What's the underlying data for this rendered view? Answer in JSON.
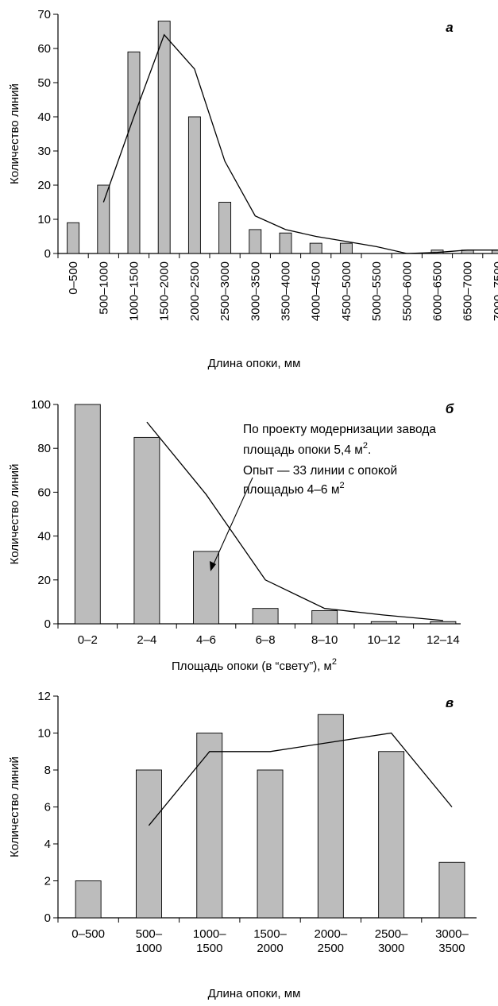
{
  "chart_data": [
    {
      "type": "bar",
      "panel_label": "а",
      "xlabel": "Длина опоки, мм",
      "ylabel": "Количество линий",
      "ylim": [
        0,
        70
      ],
      "yticks": [
        0,
        10,
        20,
        30,
        40,
        50,
        60,
        70
      ],
      "categories": [
        "0–500",
        "500–1000",
        "1000–1500",
        "1500–2000",
        "2000–2500",
        "2500–3000",
        "3000–3500",
        "3500–4000",
        "4000–4500",
        "4500–5000",
        "5000–5500",
        "5500–6000",
        "6000–6500",
        "6500–7000",
        "7000–7500"
      ],
      "values": [
        9,
        20,
        59,
        68,
        40,
        15,
        7,
        6,
        3,
        3,
        0,
        0,
        1,
        1,
        1
      ],
      "trend": [
        null,
        15,
        40,
        64,
        54,
        27,
        11,
        7,
        5,
        3.5,
        2,
        0,
        0.3,
        1,
        1
      ],
      "grid": false
    },
    {
      "type": "bar",
      "panel_label": "б",
      "xlabel": "Площадь опоки (в “свету”), м",
      "xlabel_sup": "2",
      "ylabel": "Количество линий",
      "ylim": [
        0,
        100
      ],
      "yticks": [
        0,
        20,
        40,
        60,
        80,
        100
      ],
      "categories": [
        "0–2",
        "2–4",
        "4–6",
        "6–8",
        "8–10",
        "10–12",
        "12–14"
      ],
      "values": [
        100,
        85,
        33,
        7,
        6,
        1,
        1
      ],
      "trend": [
        null,
        92,
        59,
        20,
        7,
        4,
        1.5
      ],
      "annotation": {
        "line1": "По проекту модернизации завода",
        "line2": "площадь опоки 5,4 м",
        "line2_sup": "2",
        "line2_end": ".",
        "line3": "Опыт — 33 линии с опокой",
        "line4": "площадью 4–6 м",
        "line4_sup": "2"
      },
      "grid": false
    },
    {
      "type": "bar",
      "panel_label": "в",
      "xlabel": "Длина опоки, мм",
      "ylabel": "Количество линий",
      "ylim": [
        0,
        12
      ],
      "yticks": [
        0,
        2,
        4,
        6,
        8,
        10,
        12
      ],
      "categories": [
        [
          "0–500"
        ],
        [
          "500–",
          "1000"
        ],
        [
          "1000–",
          "1500"
        ],
        [
          "1500–",
          "2000"
        ],
        [
          "2000–",
          "2500"
        ],
        [
          "2500–",
          "3000"
        ],
        [
          "3000–",
          "3500"
        ]
      ],
      "values": [
        2,
        8,
        10,
        8,
        11,
        9,
        3
      ],
      "trend": [
        null,
        5,
        9,
        9,
        9.5,
        10,
        6
      ],
      "grid": false
    }
  ]
}
